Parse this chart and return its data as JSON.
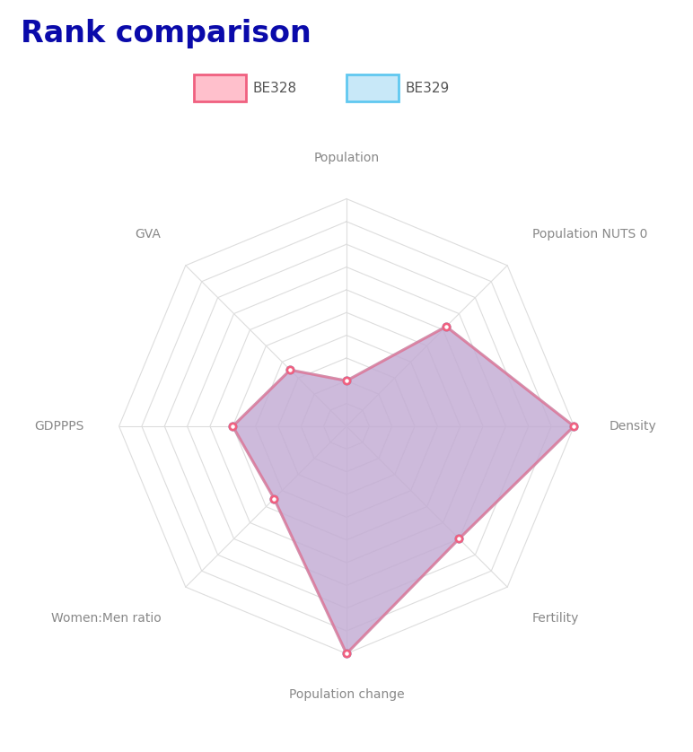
{
  "title": "Rank comparison",
  "title_color": "#0a0aaa",
  "categories": [
    "Population",
    "Population NUTS 0",
    "Density",
    "Fertility",
    "Population change",
    "Women:Men ratio",
    "GDPPPS",
    "GVA"
  ],
  "BE328_values": [
    2.0,
    6.2,
    10.0,
    7.0,
    10.0,
    4.5,
    5.0,
    3.5
  ],
  "BE329_values": [
    2.0,
    6.2,
    10.0,
    7.0,
    10.0,
    4.5,
    5.0,
    3.5
  ],
  "n_rings": 10,
  "BE328_line_color": "#f06080",
  "BE328_fill_color": "#c8a0cc",
  "BE329_line_color": "#60c8f0",
  "BE329_fill_color": "#b0d8f0",
  "grid_color": "#dddddd",
  "label_color": "#888888",
  "bg_color": "#ffffff",
  "legend_BE328": "BE328",
  "legend_BE329": "BE329",
  "legend_BE328_fill": "#ffc0cc",
  "legend_BE328_edge": "#f06080",
  "legend_BE329_fill": "#c8e8f8",
  "legend_BE329_edge": "#60c8f0"
}
